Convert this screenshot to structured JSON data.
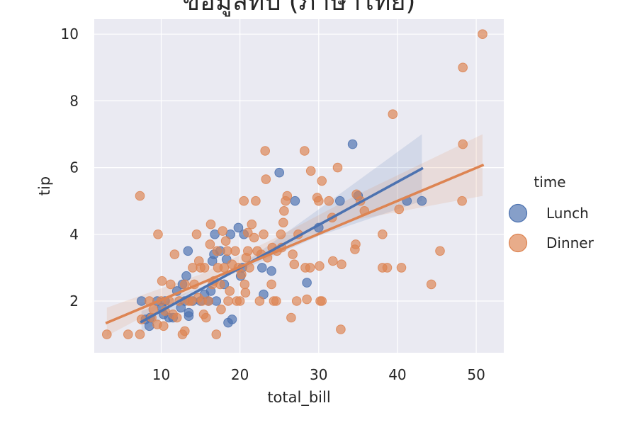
{
  "chart_data": {
    "type": "scatter",
    "title": "ข้อมูลทิป (ภาษาไทย)",
    "xlabel": "total_bill",
    "ylabel": "tip",
    "xlim": [
      1.5,
      53.5
    ],
    "ylim": [
      0.45,
      10.45
    ],
    "xticks": [
      10,
      20,
      30,
      40,
      50
    ],
    "yticks": [
      2,
      4,
      6,
      8,
      10
    ],
    "grid": true,
    "legend": {
      "title": "time",
      "placement": "right"
    },
    "series": [
      {
        "name": "Lunch",
        "color": "#4C72B0",
        "regression": {
          "x0": 7.5,
          "y0": 1.38,
          "x1": 43.1,
          "y1": 5.97
        },
        "ci_band": [
          [
            7.5,
            1.05
          ],
          [
            20,
            3.05
          ],
          [
            30,
            4.75
          ],
          [
            43.1,
            7.0
          ],
          [
            43.1,
            5.0
          ],
          [
            30,
            3.95
          ],
          [
            20,
            2.9
          ],
          [
            7.5,
            1.7
          ]
        ],
        "points": [
          [
            7.5,
            2.0
          ],
          [
            8.0,
            1.45
          ],
          [
            8.5,
            1.25
          ],
          [
            8.6,
            1.5
          ],
          [
            9.5,
            2.0
          ],
          [
            10.1,
            1.8
          ],
          [
            10.3,
            1.6
          ],
          [
            10.5,
            2.0
          ],
          [
            11.0,
            1.5
          ],
          [
            11.5,
            1.5
          ],
          [
            12.0,
            2.3
          ],
          [
            12.5,
            1.8
          ],
          [
            12.7,
            2.5
          ],
          [
            13.0,
            2.0
          ],
          [
            13.2,
            2.75
          ],
          [
            13.4,
            3.5
          ],
          [
            13.5,
            1.65
          ],
          [
            13.5,
            1.55
          ],
          [
            14.0,
            2.0
          ],
          [
            15.0,
            2.0
          ],
          [
            15.5,
            2.2
          ],
          [
            16.0,
            2.0
          ],
          [
            16.3,
            2.3
          ],
          [
            16.5,
            3.2
          ],
          [
            16.7,
            3.4
          ],
          [
            16.8,
            4.0
          ],
          [
            17.0,
            2.0
          ],
          [
            17.5,
            3.5
          ],
          [
            18.0,
            2.5
          ],
          [
            18.3,
            3.25
          ],
          [
            18.5,
            1.35
          ],
          [
            18.8,
            4.0
          ],
          [
            19.0,
            1.45
          ],
          [
            19.8,
            4.2
          ],
          [
            20.1,
            2.75
          ],
          [
            20.3,
            3.0
          ],
          [
            20.5,
            4.0
          ],
          [
            22.8,
            3.0
          ],
          [
            23.0,
            2.2
          ],
          [
            24.0,
            2.9
          ],
          [
            25.0,
            5.85
          ],
          [
            27.0,
            5.0
          ],
          [
            28.5,
            2.55
          ],
          [
            30.0,
            4.2
          ],
          [
            32.7,
            5.0
          ],
          [
            34.3,
            6.7
          ],
          [
            35.0,
            5.15
          ],
          [
            41.2,
            5.0
          ],
          [
            43.1,
            5.0
          ]
        ]
      },
      {
        "name": "Dinner",
        "color": "#DD8452",
        "regression": {
          "x0": 3.1,
          "y0": 1.35,
          "x1": 50.8,
          "y1": 6.07
        },
        "ci_band": [
          [
            3.1,
            0.95
          ],
          [
            15,
            2.45
          ],
          [
            25,
            3.6
          ],
          [
            35,
            4.45
          ],
          [
            50.8,
            5.15
          ],
          [
            50.8,
            7.0
          ],
          [
            35,
            5.2
          ],
          [
            25,
            3.95
          ],
          [
            15,
            2.8
          ],
          [
            3.1,
            1.8
          ]
        ],
        "points": [
          [
            3.1,
            1.0
          ],
          [
            5.8,
            1.0
          ],
          [
            7.3,
            5.15
          ],
          [
            7.3,
            1.0
          ],
          [
            7.5,
            1.45
          ],
          [
            8.5,
            2.0
          ],
          [
            8.8,
            1.5
          ],
          [
            9.0,
            1.75
          ],
          [
            9.5,
            1.3
          ],
          [
            9.6,
            4.0
          ],
          [
            10.0,
            2.0
          ],
          [
            10.1,
            2.6
          ],
          [
            10.3,
            1.25
          ],
          [
            10.5,
            1.7
          ],
          [
            11.0,
            2.0
          ],
          [
            11.2,
            2.5
          ],
          [
            11.5,
            1.6
          ],
          [
            11.7,
            3.4
          ],
          [
            12.0,
            1.5
          ],
          [
            12.3,
            2.0
          ],
          [
            12.7,
            1.0
          ],
          [
            13.0,
            1.1
          ],
          [
            13.0,
            2.5
          ],
          [
            13.5,
            2.0
          ],
          [
            13.8,
            2.0
          ],
          [
            14.0,
            3.0
          ],
          [
            14.2,
            2.5
          ],
          [
            14.5,
            4.0
          ],
          [
            14.7,
            2.1
          ],
          [
            14.8,
            3.2
          ],
          [
            15.0,
            3.0
          ],
          [
            15.2,
            2.0
          ],
          [
            15.4,
            1.6
          ],
          [
            15.5,
            3.0
          ],
          [
            15.7,
            1.5
          ],
          [
            16.0,
            2.0
          ],
          [
            16.2,
            3.7
          ],
          [
            16.3,
            4.3
          ],
          [
            16.5,
            2.5
          ],
          [
            16.7,
            2.6
          ],
          [
            17.0,
            1.0
          ],
          [
            17.1,
            3.5
          ],
          [
            17.2,
            3.0
          ],
          [
            17.5,
            2.5
          ],
          [
            17.6,
            1.75
          ],
          [
            17.8,
            4.1
          ],
          [
            18.0,
            3.0
          ],
          [
            18.2,
            3.8
          ],
          [
            18.4,
            3.5
          ],
          [
            18.5,
            2.0
          ],
          [
            18.7,
            2.3
          ],
          [
            19.0,
            3.1
          ],
          [
            19.4,
            3.5
          ],
          [
            19.6,
            2.0
          ],
          [
            19.8,
            3.0
          ],
          [
            20.0,
            2.0
          ],
          [
            20.2,
            2.8
          ],
          [
            20.5,
            5.0
          ],
          [
            20.6,
            2.5
          ],
          [
            20.7,
            2.25
          ],
          [
            20.8,
            3.3
          ],
          [
            21.0,
            3.5
          ],
          [
            21.0,
            4.05
          ],
          [
            21.2,
            3.0
          ],
          [
            21.5,
            4.3
          ],
          [
            21.8,
            3.9
          ],
          [
            22.0,
            5.0
          ],
          [
            22.2,
            3.5
          ],
          [
            22.5,
            2.0
          ],
          [
            22.7,
            3.4
          ],
          [
            23.0,
            4.0
          ],
          [
            23.2,
            6.5
          ],
          [
            23.3,
            5.65
          ],
          [
            23.5,
            3.3
          ],
          [
            24.0,
            2.5
          ],
          [
            24.1,
            3.6
          ],
          [
            24.3,
            2.0
          ],
          [
            24.6,
            2.0
          ],
          [
            24.7,
            3.5
          ],
          [
            25.2,
            4.0
          ],
          [
            25.3,
            3.6
          ],
          [
            25.5,
            4.35
          ],
          [
            25.6,
            4.7
          ],
          [
            25.8,
            5.0
          ],
          [
            26.0,
            5.15
          ],
          [
            26.5,
            1.5
          ],
          [
            26.7,
            3.4
          ],
          [
            26.9,
            3.1
          ],
          [
            27.2,
            2.0
          ],
          [
            27.4,
            4.0
          ],
          [
            28.2,
            6.5
          ],
          [
            28.3,
            3.0
          ],
          [
            28.5,
            2.05
          ],
          [
            28.9,
            3.0
          ],
          [
            29.0,
            5.9
          ],
          [
            29.8,
            5.1
          ],
          [
            30.0,
            5.0
          ],
          [
            30.1,
            3.05
          ],
          [
            30.2,
            2.0
          ],
          [
            30.4,
            2.0
          ],
          [
            30.4,
            5.6
          ],
          [
            31.3,
            5.0
          ],
          [
            31.7,
            4.5
          ],
          [
            31.8,
            3.2
          ],
          [
            32.4,
            6.0
          ],
          [
            32.8,
            1.15
          ],
          [
            32.9,
            3.1
          ],
          [
            34.6,
            3.55
          ],
          [
            34.7,
            3.7
          ],
          [
            34.8,
            5.2
          ],
          [
            35.3,
            5.0
          ],
          [
            35.8,
            4.7
          ],
          [
            38.1,
            3.0
          ],
          [
            38.1,
            4.0
          ],
          [
            38.7,
            3.0
          ],
          [
            39.4,
            7.6
          ],
          [
            40.2,
            4.75
          ],
          [
            40.5,
            3.0
          ],
          [
            44.3,
            2.5
          ],
          [
            45.4,
            3.5
          ],
          [
            48.2,
            5.0
          ],
          [
            48.3,
            6.7
          ],
          [
            48.3,
            9.0
          ],
          [
            50.8,
            10.0
          ]
        ]
      }
    ]
  }
}
